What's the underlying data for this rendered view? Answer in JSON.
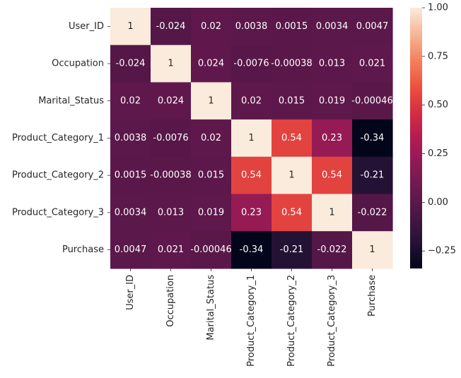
{
  "chart_data": {
    "type": "heatmap",
    "title": "",
    "xlabel": "",
    "ylabel": "",
    "row_labels": [
      "User_ID",
      "Occupation",
      "Marital_Status",
      "Product_Category_1",
      "Product_Category_2",
      "Product_Category_3",
      "Purchase"
    ],
    "col_labels": [
      "User_ID",
      "Occupation",
      "Marital_Status",
      "Product_Category_1",
      "Product_Category_2",
      "Product_Category_3",
      "Purchase"
    ],
    "values": [
      [
        1,
        -0.024,
        0.02,
        0.0038,
        0.0015,
        0.0034,
        0.0047
      ],
      [
        -0.024,
        1,
        0.024,
        -0.0076,
        -0.00038,
        0.013,
        0.021
      ],
      [
        0.02,
        0.024,
        1,
        0.02,
        0.015,
        0.019,
        -0.00046
      ],
      [
        0.0038,
        -0.0076,
        0.02,
        1,
        0.54,
        0.23,
        -0.34
      ],
      [
        0.0015,
        -0.00038,
        0.015,
        0.54,
        1,
        0.54,
        -0.21
      ],
      [
        0.0034,
        0.013,
        0.019,
        0.23,
        0.54,
        1,
        -0.022
      ],
      [
        0.0047,
        0.021,
        -0.00046,
        -0.34,
        -0.21,
        -0.022,
        1
      ]
    ],
    "annotations": [
      [
        "1",
        "-0.024",
        "0.02",
        "0.0038",
        "0.0015",
        "0.0034",
        "0.0047"
      ],
      [
        "-0.024",
        "1",
        "0.024",
        "-0.0076",
        "-0.00038",
        "0.013",
        "0.021"
      ],
      [
        "0.02",
        "0.024",
        "1",
        "0.02",
        "0.015",
        "0.019",
        "-0.00046"
      ],
      [
        "0.0038",
        "-0.0076",
        "0.02",
        "1",
        "0.54",
        "0.23",
        "-0.34"
      ],
      [
        "0.0015",
        "-0.00038",
        "0.015",
        "0.54",
        "1",
        "0.54",
        "-0.21"
      ],
      [
        "0.0034",
        "0.013",
        "0.019",
        "0.23",
        "0.54",
        "1",
        "-0.022"
      ],
      [
        "0.0047",
        "0.021",
        "-0.00046",
        "-0.34",
        "-0.21",
        "-0.022",
        "1"
      ]
    ],
    "colorbar": {
      "vmin": -0.34,
      "vmax": 1.0,
      "ticks": [
        1.0,
        0.75,
        0.5,
        0.25,
        0.0,
        -0.25
      ],
      "tick_labels": [
        "1.00",
        "0.75",
        "0.50",
        "0.25",
        "0.00",
        "−0.25"
      ],
      "colormap": "rocket"
    }
  }
}
